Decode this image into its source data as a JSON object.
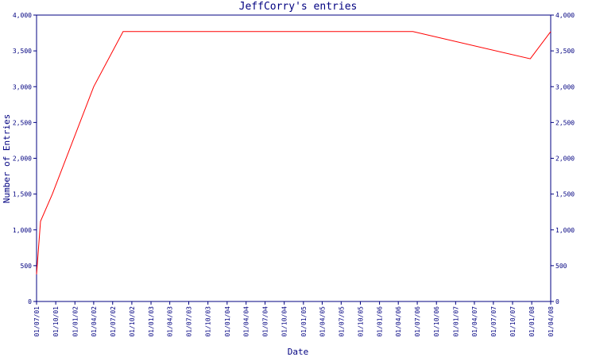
{
  "chart_data": {
    "type": "line",
    "title": "JeffCorry's entries",
    "xlabel": "Date",
    "ylabel": "Number of Entries",
    "ylim": [
      0,
      4000
    ],
    "y_ticks": [
      "0",
      "500",
      "1,000",
      "1,500",
      "2,000",
      "2,500",
      "3,000",
      "3,500",
      "4,000"
    ],
    "x_ticks": [
      "01/07/01",
      "01/10/01",
      "01/01/02",
      "01/04/02",
      "01/07/02",
      "01/10/02",
      "01/01/03",
      "01/04/03",
      "01/07/03",
      "01/10/03",
      "01/01/04",
      "01/04/04",
      "01/07/04",
      "01/10/04",
      "01/01/05",
      "01/04/05",
      "01/07/05",
      "01/10/05",
      "01/01/06",
      "01/04/06",
      "01/07/06",
      "01/10/06",
      "01/01/07",
      "01/04/07",
      "01/07/07",
      "01/10/07",
      "01/01/08",
      "01/04/08"
    ],
    "grid": false,
    "series": [
      {
        "color": "#ff0000",
        "points": [
          {
            "x": "2001-07-01",
            "y": 380
          },
          {
            "x": "2001-07-20",
            "y": 1120
          },
          {
            "x": "2001-09-15",
            "y": 1500
          },
          {
            "x": "2002-04-01",
            "y": 3000
          },
          {
            "x": "2002-08-20",
            "y": 3770
          },
          {
            "x": "2006-06-10",
            "y": 3770
          },
          {
            "x": "2007-12-25",
            "y": 3390
          },
          {
            "x": "2008-04-01",
            "y": 3770
          }
        ]
      }
    ]
  },
  "colors": {
    "axis": "#000080",
    "line": "#ff0000"
  }
}
